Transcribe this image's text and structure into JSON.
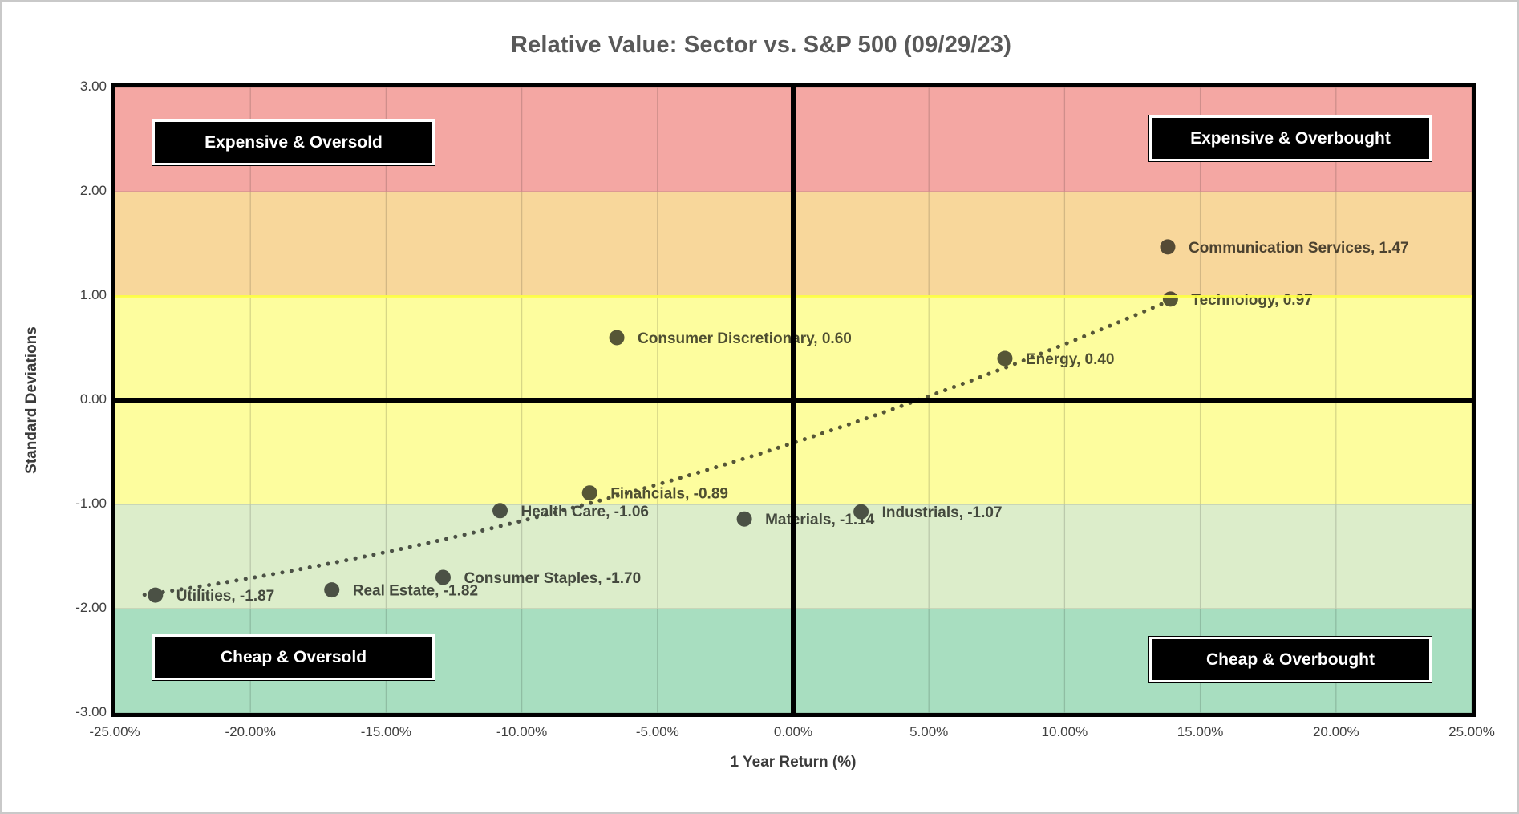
{
  "figure": {
    "title": "Relative Value: Sector vs. S&P 500 (09/29/23)"
  },
  "colors": {
    "band_red": "#F4A7A3",
    "band_orange": "#F8D79B",
    "band_yellow": "#FDFD9E",
    "band_light_green": "#DCEDCA",
    "band_teal_green": "#A8DEC0",
    "data_ink": "#575757",
    "grid_line": "#D9D9D9",
    "axis_line": "#000000",
    "title_text": "#595959",
    "quadrant_box_bg": "#000000",
    "quadrant_box_text": "#FFFFFF"
  },
  "chart_data": {
    "type": "scatter",
    "title": "Relative Value: Sector vs. S&P 500 (09/29/23)",
    "xlabel": "1 Year Return (%)",
    "ylabel": "Standard Deviations",
    "xlim": [
      -25,
      25
    ],
    "ylim": [
      -3,
      3
    ],
    "grid": true,
    "x_ticks": [
      "-25.00%",
      "-20.00%",
      "-15.00%",
      "-10.00%",
      "-5.00%",
      "0.00%",
      "5.00%",
      "10.00%",
      "15.00%",
      "20.00%",
      "25.00%"
    ],
    "x_tick_values": [
      -25,
      -20,
      -15,
      -10,
      -5,
      0,
      5,
      10,
      15,
      20,
      25
    ],
    "y_ticks": [
      "3.00",
      "2.00",
      "1.00",
      "0.00",
      "-1.00",
      "-2.00",
      "-3.00"
    ],
    "y_tick_values": [
      3,
      2,
      1,
      0,
      -1,
      -2,
      -3
    ],
    "points": [
      {
        "name": "Utilities",
        "x": -23.5,
        "y": -1.87,
        "label": "Utilities, -1.87"
      },
      {
        "name": "Real Estate",
        "x": -17.0,
        "y": -1.82,
        "label": "Real Estate, -1.82"
      },
      {
        "name": "Consumer Staples",
        "x": -12.9,
        "y": -1.7,
        "label": "Consumer Staples, -1.70"
      },
      {
        "name": "Health Care",
        "x": -10.8,
        "y": -1.06,
        "label": "Health Care, -1.06"
      },
      {
        "name": "Financials",
        "x": -7.5,
        "y": -0.89,
        "label": "Financials, -0.89"
      },
      {
        "name": "Consumer Discretionary",
        "x": -6.5,
        "y": 0.6,
        "label": "Consumer Discretionary, 0.60"
      },
      {
        "name": "Materials",
        "x": -1.8,
        "y": -1.14,
        "label": "Materials, -1.14"
      },
      {
        "name": "Industrials",
        "x": 2.5,
        "y": -1.07,
        "label": "Industrials, -1.07"
      },
      {
        "name": "Energy",
        "x": 7.8,
        "y": 0.4,
        "label": "Energy, 0.40"
      },
      {
        "name": "Technology",
        "x": 13.9,
        "y": 0.97,
        "label": "Technology, 0.97"
      },
      {
        "name": "Communication Services",
        "x": 13.8,
        "y": 1.47,
        "label": "Communication Services, 1.47"
      }
    ],
    "trendline": {
      "style": "dotted",
      "model": "quadratic",
      "a": 0.000993,
      "b": 0.0847,
      "c": -0.41,
      "x_start": -23.9,
      "x_end": 13.9
    },
    "bands": [
      {
        "name": "expensive-red",
        "from": 2,
        "to": 3,
        "color": "band_red"
      },
      {
        "name": "expensive-orange",
        "from": 1,
        "to": 2,
        "color": "band_orange"
      },
      {
        "name": "neutral-yellow",
        "from": -1,
        "to": 1,
        "color": "band_yellow"
      },
      {
        "name": "cheap-light-green",
        "from": -2,
        "to": -1,
        "color": "band_light_green"
      },
      {
        "name": "cheap-teal-green",
        "from": -3,
        "to": -2,
        "color": "band_teal_green"
      }
    ],
    "quadrant_labels": [
      {
        "text": "Expensive & Oversold",
        "position": "top-left"
      },
      {
        "text": "Expensive & Overbought",
        "position": "top-right"
      },
      {
        "text": "Cheap & Oversold",
        "position": "bottom-left"
      },
      {
        "text": "Cheap & Overbought",
        "position": "bottom-right"
      }
    ]
  }
}
